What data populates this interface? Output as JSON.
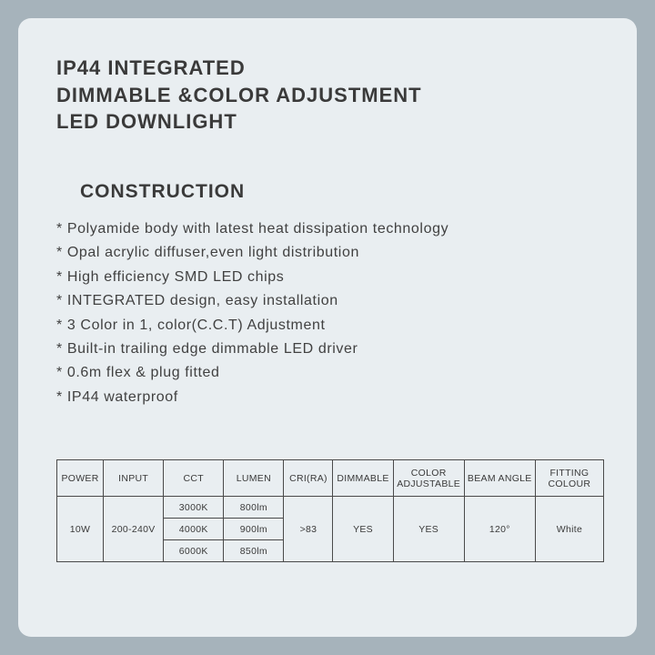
{
  "title": {
    "line1": "IP44  INTEGRATED",
    "line2": "DIMMABLE &COLOR ADJUSTMENT",
    "line3": "LED DOWNLIGHT"
  },
  "section": "CONSTRUCTION",
  "features": [
    "Polyamide body with latest heat dissipation technology",
    "Opal acrylic diffuser,even light distribution",
    "High efficiency SMD LED chips",
    "INTEGRATED design, easy  installation",
    "3  Color  in  1, color(C.C.T)  Adjustment",
    "Built-in  trailing  edge  dimmable LED driver",
    "0.6m flex & plug fitted",
    "IP44 waterproof"
  ],
  "table": {
    "headers": [
      "POWER",
      "INPUT",
      "CCT",
      "LUMEN",
      "CRI(RA)",
      "DIMMABLE",
      "COLOR ADJUSTABLE",
      "BEAM ANGLE",
      "FITTING COLOUR"
    ],
    "power": "10W",
    "input": "200-240V",
    "cct": [
      "3000K",
      "4000K",
      "6000K"
    ],
    "lumen": [
      "800lm",
      "900lm",
      "850lm"
    ],
    "cri": ">83",
    "dimmable": "YES",
    "color_adjustable": "YES",
    "beam_angle": "120°",
    "fitting_colour": "White"
  },
  "style": {
    "page_bg": "#e9eef1",
    "outer_bg": "#a6b3bb",
    "text_color": "#3a3a3a",
    "border_color": "#4a4a4a"
  }
}
